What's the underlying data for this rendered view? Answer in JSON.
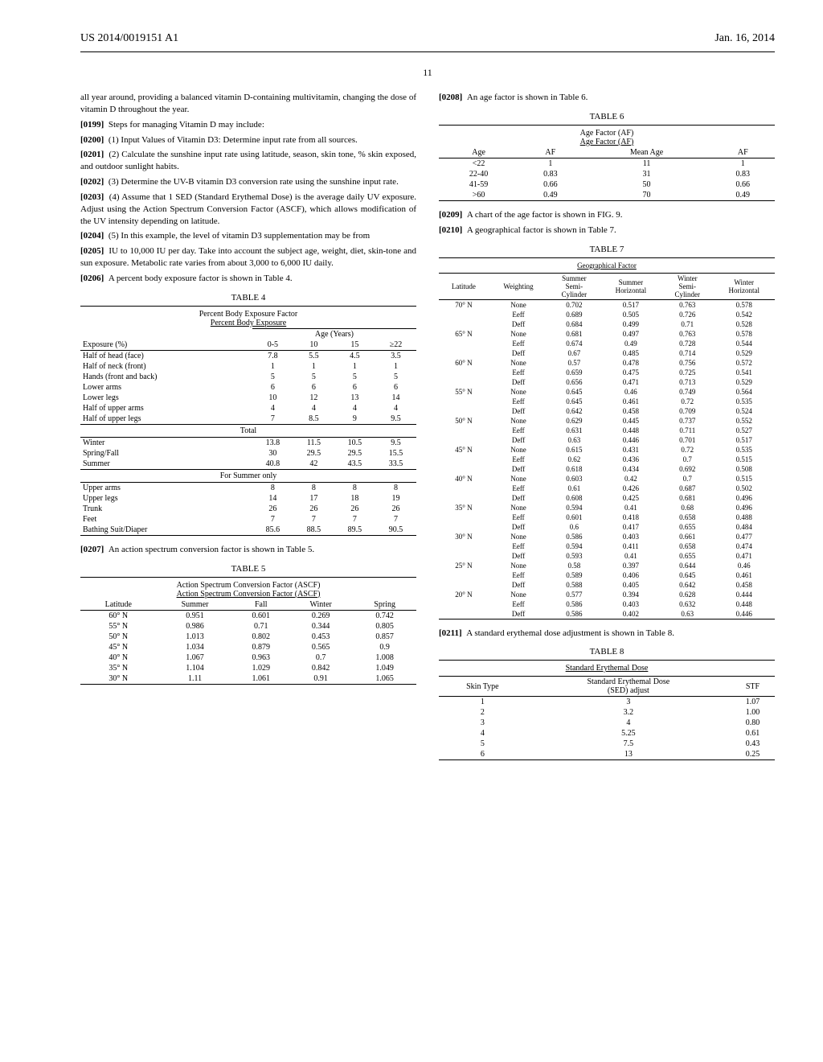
{
  "header": {
    "pub_number": "US 2014/0019151 A1",
    "pub_date": "Jan. 16, 2014",
    "page_number": "11"
  },
  "left": {
    "p0_text": "all year around, providing a balanced vitamin D-containing multivitamin, changing the dose of vitamin D throughout the year.",
    "p0199_num": "[0199]",
    "p0199_text": "Steps for managing Vitamin D may include:",
    "p0200_num": "[0200]",
    "p0200_text": "(1) Input Values of Vitamin D3: Determine input rate from all sources.",
    "p0201_num": "[0201]",
    "p0201_text": "(2) Calculate the sunshine input rate using latitude, season, skin tone, % skin exposed, and outdoor sunlight habits.",
    "p0202_num": "[0202]",
    "p0202_text": "(3) Determine the UV-B vitamin D3 conversion rate using the sunshine input rate.",
    "p0203_num": "[0203]",
    "p0203_text": "(4) Assume that 1 SED (Standard Erythemal Dose) is the average daily UV exposure. Adjust using the Action Spectrum Conversion Factor (ASCF), which allows modification of the UV intensity depending on latitude.",
    "p0204_num": "[0204]",
    "p0204_text": "(5) In this example, the level of vitamin D3 supplementation may be from",
    "p0205_num": "[0205]",
    "p0205_text": "IU to 10,000 IU per day. Take into account the subject age, weight, diet, skin-tone and sun exposure. Metabolic rate varies from about 3,000 to 6,000 IU daily.",
    "p0206_num": "[0206]",
    "p0206_text": "A percent body exposure factor is shown in Table 4.",
    "table4": {
      "label": "TABLE 4",
      "title1": "Percent Body Exposure Factor",
      "title2": "Percent Body Exposure",
      "age_header": "Age (Years)",
      "col_exposure": "Exposure (%)",
      "cols": [
        "0-5",
        "10",
        "15",
        "≥22"
      ],
      "rows_main": [
        [
          "Half of head (face)",
          "7.8",
          "5.5",
          "4.5",
          "3.5"
        ],
        [
          "Half of neck (front)",
          "1",
          "1",
          "1",
          "1"
        ],
        [
          "Hands (front and back)",
          "5",
          "5",
          "5",
          "5"
        ],
        [
          "Lower arms",
          "6",
          "6",
          "6",
          "6"
        ],
        [
          "Lower legs",
          "10",
          "12",
          "13",
          "14"
        ],
        [
          "Half of upper arms",
          "4",
          "4",
          "4",
          "4"
        ],
        [
          "Half of upper legs",
          "7",
          "8.5",
          "9",
          "9.5"
        ]
      ],
      "total_label": "Total",
      "rows_total": [
        [
          "Winter",
          "13.8",
          "11.5",
          "10.5",
          "9.5"
        ],
        [
          "Spring/Fall",
          "30",
          "29.5",
          "29.5",
          "15.5"
        ],
        [
          "Summer",
          "40.8",
          "42",
          "43.5",
          "33.5"
        ]
      ],
      "summer_only": "For Summer only",
      "rows_summer": [
        [
          "Upper arms",
          "8",
          "8",
          "8",
          "8"
        ],
        [
          "Upper legs",
          "14",
          "17",
          "18",
          "19"
        ],
        [
          "Trunk",
          "26",
          "26",
          "26",
          "26"
        ],
        [
          "Feet",
          "7",
          "7",
          "7",
          "7"
        ],
        [
          "Bathing Suit/Diaper",
          "85.6",
          "88.5",
          "89.5",
          "90.5"
        ]
      ]
    },
    "p0207_num": "[0207]",
    "p0207_text": "An action spectrum conversion factor is shown in Table 5.",
    "table5": {
      "label": "TABLE 5",
      "title1": "Action Spectrum Conversion Factor (ASCF)",
      "title2": "Action Spectrum Conversion Factor (ASCF)",
      "cols": [
        "Latitude",
        "Summer",
        "Fall",
        "Winter",
        "Spring"
      ],
      "rows": [
        [
          "60° N",
          "0.951",
          "0.601",
          "0.269",
          "0.742"
        ],
        [
          "55° N",
          "0.986",
          "0.71",
          "0.344",
          "0.805"
        ],
        [
          "50° N",
          "1.013",
          "0.802",
          "0.453",
          "0.857"
        ],
        [
          "45° N",
          "1.034",
          "0.879",
          "0.565",
          "0.9"
        ],
        [
          "40° N",
          "1.067",
          "0.963",
          "0.7",
          "1.008"
        ],
        [
          "35° N",
          "1.104",
          "1.029",
          "0.842",
          "1.049"
        ],
        [
          "30° N",
          "1.11",
          "1.061",
          "0.91",
          "1.065"
        ]
      ]
    }
  },
  "right": {
    "p0208_num": "[0208]",
    "p0208_text": "An age factor is shown in Table 6.",
    "table6": {
      "label": "TABLE 6",
      "title1": "Age Factor (AF)",
      "title2": "Age Factor (AF)",
      "cols": [
        "Age",
        "AF",
        "Mean Age",
        "AF"
      ],
      "rows": [
        [
          "<22",
          "1",
          "11",
          "1"
        ],
        [
          "22-40",
          "0.83",
          "31",
          "0.83"
        ],
        [
          "41-59",
          "0.66",
          "50",
          "0.66"
        ],
        [
          ">60",
          "0.49",
          "70",
          "0.49"
        ]
      ]
    },
    "p0209_num": "[0209]",
    "p0209_text": "A chart of the age factor is shown in FIG. 9.",
    "p0210_num": "[0210]",
    "p0210_text": "A geographical factor is shown in Table 7.",
    "table7": {
      "label": "TABLE 7",
      "title": "Geographical Factor",
      "cols": [
        "Latitude",
        "Weighting",
        "Summer Semi-Cylinder",
        "Summer Horizontal",
        "Winter Semi-Cylinder",
        "Winter Horizontal"
      ],
      "rows": [
        [
          "70° N",
          "None",
          "0.702",
          "0.517",
          "0.763",
          "0.578"
        ],
        [
          "",
          "Eeff",
          "0.689",
          "0.505",
          "0.726",
          "0.542"
        ],
        [
          "",
          "Deff",
          "0.684",
          "0.499",
          "0.71",
          "0.528"
        ],
        [
          "65° N",
          "None",
          "0.681",
          "0.497",
          "0.763",
          "0.578"
        ],
        [
          "",
          "Eeff",
          "0.674",
          "0.49",
          "0.728",
          "0.544"
        ],
        [
          "",
          "Deff",
          "0.67",
          "0.485",
          "0.714",
          "0.529"
        ],
        [
          "60° N",
          "None",
          "0.57",
          "0.478",
          "0.756",
          "0.572"
        ],
        [
          "",
          "Eeff",
          "0.659",
          "0.475",
          "0.725",
          "0.541"
        ],
        [
          "",
          "Deff",
          "0.656",
          "0.471",
          "0.713",
          "0.529"
        ],
        [
          "55° N",
          "None",
          "0.645",
          "0.46",
          "0.749",
          "0.564"
        ],
        [
          "",
          "Eeff",
          "0.645",
          "0.461",
          "0.72",
          "0.535"
        ],
        [
          "",
          "Deff",
          "0.642",
          "0.458",
          "0.709",
          "0.524"
        ],
        [
          "50° N",
          "None",
          "0.629",
          "0.445",
          "0.737",
          "0.552"
        ],
        [
          "",
          "Eeff",
          "0.631",
          "0.448",
          "0.711",
          "0.527"
        ],
        [
          "",
          "Deff",
          "0.63",
          "0.446",
          "0.701",
          "0.517"
        ],
        [
          "45° N",
          "None",
          "0.615",
          "0.431",
          "0.72",
          "0.535"
        ],
        [
          "",
          "Eeff",
          "0.62",
          "0.436",
          "0.7",
          "0.515"
        ],
        [
          "",
          "Deff",
          "0.618",
          "0.434",
          "0.692",
          "0.508"
        ],
        [
          "40° N",
          "None",
          "0.603",
          "0.42",
          "0.7",
          "0.515"
        ],
        [
          "",
          "Eeff",
          "0.61",
          "0.426",
          "0.687",
          "0.502"
        ],
        [
          "",
          "Deff",
          "0.608",
          "0.425",
          "0.681",
          "0.496"
        ],
        [
          "35° N",
          "None",
          "0.594",
          "0.41",
          "0.68",
          "0.496"
        ],
        [
          "",
          "Eeff",
          "0.601",
          "0.418",
          "0.658",
          "0.488"
        ],
        [
          "",
          "Deff",
          "0.6",
          "0.417",
          "0.655",
          "0.484"
        ],
        [
          "30° N",
          "None",
          "0.586",
          "0.403",
          "0.661",
          "0.477"
        ],
        [
          "",
          "Eeff",
          "0.594",
          "0.411",
          "0.658",
          "0.474"
        ],
        [
          "",
          "Deff",
          "0.593",
          "0.41",
          "0.655",
          "0.471"
        ],
        [
          "25° N",
          "None",
          "0.58",
          "0.397",
          "0.644",
          "0.46"
        ],
        [
          "",
          "Eeff",
          "0.589",
          "0.406",
          "0.645",
          "0.461"
        ],
        [
          "",
          "Deff",
          "0.588",
          "0.405",
          "0.642",
          "0.458"
        ],
        [
          "20° N",
          "None",
          "0.577",
          "0.394",
          "0.628",
          "0.444"
        ],
        [
          "",
          "Eeff",
          "0.586",
          "0.403",
          "0.632",
          "0.448"
        ],
        [
          "",
          "Deff",
          "0.586",
          "0.402",
          "0.63",
          "0.446"
        ]
      ]
    },
    "p0211_num": "[0211]",
    "p0211_text": "A standard erythemal dose adjustment is shown in Table 8.",
    "table8": {
      "label": "TABLE 8",
      "title": "Standard Erythemal Dose",
      "cols": [
        "Skin Type",
        "Standard Erythemal Dose (SED) adjust",
        "STF"
      ],
      "rows": [
        [
          "1",
          "3",
          "1.07"
        ],
        [
          "2",
          "3.2",
          "1.00"
        ],
        [
          "3",
          "4",
          "0.80"
        ],
        [
          "4",
          "5.25",
          "0.61"
        ],
        [
          "5",
          "7.5",
          "0.43"
        ],
        [
          "6",
          "13",
          "0.25"
        ]
      ]
    }
  }
}
